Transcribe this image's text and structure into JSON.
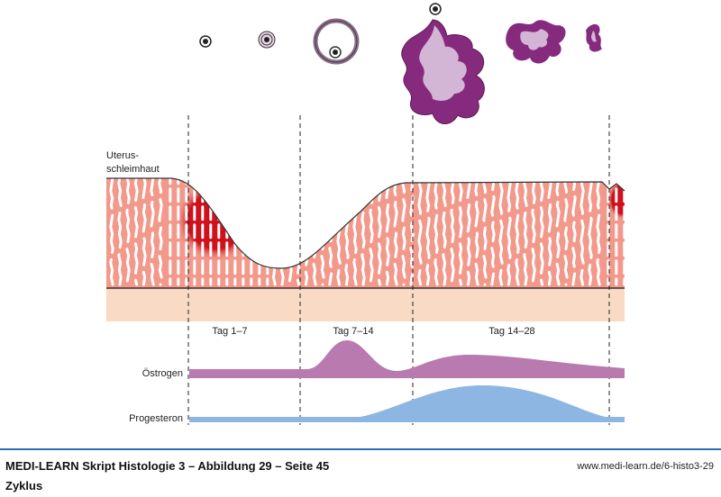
{
  "diagram": {
    "uterus_label_line1": "Uterus-",
    "uterus_label_line2": "schleimhaut",
    "phases": [
      "Tag 1–7",
      "Tag 7–14",
      "Tag 14–28"
    ],
    "hormones": {
      "estrogen": "Östrogen",
      "progesterone": "Progesteron"
    },
    "colors": {
      "endometrium": "#f2998b",
      "stroma": "#f9dac5",
      "bleeding": "#d0101a",
      "corpus_luteum_dark": "#862a7e",
      "corpus_luteum_light": "#d3b5d5",
      "estrogen": "#b87aaf",
      "progesterone": "#8db6e2",
      "rule": "#2a6db5"
    }
  },
  "footer": {
    "title": "MEDI-LEARN Skript Histologie 3 – Abbildung 29 – Seite 45",
    "url": "www.medi-learn.de/6-histo3-29",
    "subtitle": "Zyklus"
  }
}
